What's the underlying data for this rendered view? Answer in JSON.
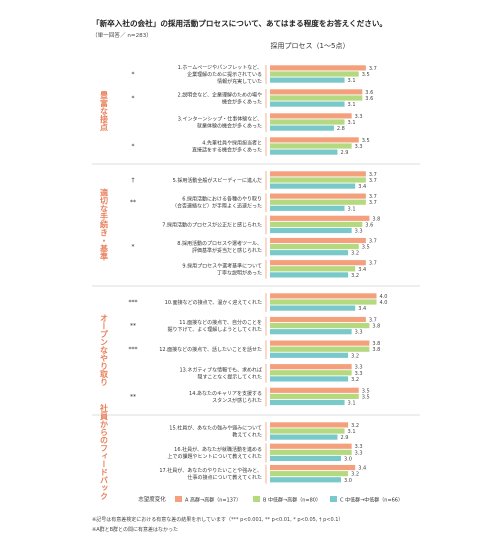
{
  "title": "「新卒入社の会社」の採用活動プロセスについて、あてはまる程度をお答えください。",
  "subtitle": "（単一回答／ n=283）",
  "footnotes": [
    "※記号は有意差検定における有意な差の結果を示しています（*** p<0.001, ** p<0.01, * p<0.05, † p<0.1）",
    "※A群とB群との間に有意差はなかった"
  ],
  "chart_data": {
    "type": "bar",
    "orientation": "horizontal",
    "title": "採用プロセス（1〜5点）",
    "xlim": [
      1,
      5
    ],
    "colors": {
      "A": "#f4a07c",
      "B": "#b5d97f",
      "C": "#79c9cb",
      "group_label": "#e8805c",
      "row_line": "#f4a07c",
      "divider": "#bbbbbb"
    },
    "legend": {
      "title": "志望度変化",
      "items": [
        {
          "key": "A",
          "label": "A 高群→高群（n=137）"
        },
        {
          "key": "B",
          "label": "B 中低群→高群（n=80）"
        },
        {
          "key": "C",
          "label": "C 中低群→中低群（n=66）"
        }
      ]
    },
    "groups": [
      {
        "name": "豊富な接点",
        "items": [
          {
            "sig": "*",
            "label": [
              "1.ホームページやパンフレットなど、",
              "企業理解のために提示されている",
              "情報が充実していた"
            ],
            "values": [
              3.7,
              3.5,
              3.1
            ]
          },
          {
            "sig": "*",
            "label": [
              "2.説明会など、企業理解のための場や",
              "機会が多くあった"
            ],
            "values": [
              3.6,
              3.6,
              3.1
            ]
          },
          {
            "sig": "",
            "label": [
              "3.インターンシップ・仕事体験など、",
              "就業体験の機会が多くあった"
            ],
            "values": [
              3.3,
              3.1,
              2.8
            ]
          },
          {
            "sig": "*",
            "label": [
              "4.先輩社員や採用担当者と",
              "直接話をする機会が多くあった"
            ],
            "values": [
              3.5,
              3.3,
              2.9
            ]
          }
        ]
      },
      {
        "name": "適切な手続き・基準",
        "items": [
          {
            "sig": "†",
            "label": [
              "5.採用活動全般がスピーディーに進んだ"
            ],
            "values": [
              3.7,
              3.7,
              3.4
            ]
          },
          {
            "sig": "**",
            "label": [
              "6.採用活動における各種のやり取り",
              "（合否連絡など）が手際よく迅速だった"
            ],
            "values": [
              3.7,
              3.7,
              3.1
            ]
          },
          {
            "sig": "",
            "label": [
              "7.採用活動のプロセスが公正だと感じられた"
            ],
            "values": [
              3.8,
              3.6,
              3.3
            ]
          },
          {
            "sig": "*",
            "label": [
              "8.採用活動のプロセスや選考ツール、",
              "評価基準が妥当だと感じられた"
            ],
            "values": [
              3.7,
              3.5,
              3.2
            ]
          },
          {
            "sig": "",
            "label": [
              "9.採用プロセスや選考基準について",
              "丁寧な説明があった"
            ],
            "values": [
              3.7,
              3.4,
              3.2
            ]
          }
        ]
      },
      {
        "name": "オープンなやり取り",
        "items": [
          {
            "sig": "***",
            "label": [
              "10.面接などの接点で、温かく迎えてくれた"
            ],
            "values": [
              4.0,
              4.0,
              3.4
            ]
          },
          {
            "sig": "**",
            "label": [
              "11.面接などの接点で、自分のことを",
              "掘り下げて、よく理解しようとしてくれた"
            ],
            "values": [
              3.7,
              3.8,
              3.3
            ]
          },
          {
            "sig": "***",
            "label": [
              "12.面接などの接点で、話したいことを話せた"
            ],
            "values": [
              3.8,
              3.8,
              3.2
            ]
          },
          {
            "sig": "",
            "label": [
              "13.ネガティブな情報でも、求めれば",
              "隠すことなく提示してくれた"
            ],
            "values": [
              3.3,
              3.3,
              3.2
            ]
          },
          {
            "sig": "**",
            "label": [
              "14.あなたのキャリアを支援する",
              "スタンスが感じられた"
            ],
            "values": [
              3.5,
              3.5,
              3.1
            ]
          }
        ]
      },
      {
        "name": "社員からのフィードバック",
        "items": [
          {
            "sig": "",
            "label": [
              "15.社員が、あなたの強みや弱みについて",
              "教えてくれた"
            ],
            "values": [
              3.2,
              3.1,
              2.9
            ]
          },
          {
            "sig": "",
            "label": [
              "16.社員が、あなたが就職活動を進める",
              "上での課題やヒントについて教えてくれた"
            ],
            "values": [
              3.3,
              3.3,
              3.0
            ]
          },
          {
            "sig": "",
            "label": [
              "17.社員が、あなたのやりたいことや強みと、",
              "仕事の接点について教えてくれた"
            ],
            "values": [
              3.4,
              3.2,
              3.0
            ]
          }
        ]
      }
    ]
  }
}
